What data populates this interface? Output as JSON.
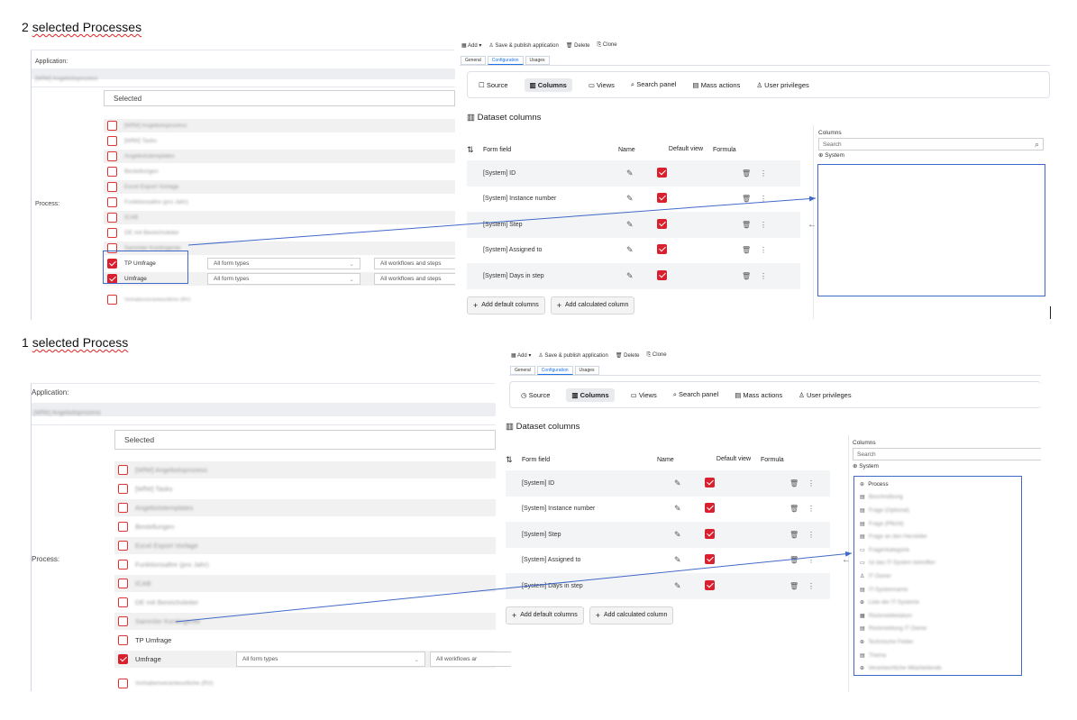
{
  "top": {
    "caption": {
      "count": "2",
      "word": "selected Processes"
    },
    "application_label": "Application:",
    "application_value": "[WfW] Angebotsprozess",
    "process_label": "Process:",
    "selected_label": "Selected",
    "processes": [
      {
        "label": "[WfW] Angebotsprozess",
        "checked": false,
        "blurred": true
      },
      {
        "label": "[WfW] Tasks",
        "checked": false,
        "blurred": true
      },
      {
        "label": "Angebotstemplates",
        "checked": false,
        "blurred": true
      },
      {
        "label": "Bestellungen",
        "checked": false,
        "blurred": true
      },
      {
        "label": "Excel Export Vorlage",
        "checked": false,
        "blurred": true
      },
      {
        "label": "Funktionsaltre (pro Jahr)",
        "checked": false,
        "blurred": true
      },
      {
        "label": "ICAB",
        "checked": false,
        "blurred": true
      },
      {
        "label": "DE mit Bereichsleiter",
        "checked": false,
        "blurred": true
      },
      {
        "label": "Sammler Kontingente",
        "checked": false,
        "blurred": true
      },
      {
        "label": "TP Umfrage",
        "checked": true,
        "blurred": false,
        "form_type": "All form types",
        "workflow": "All workflows and steps"
      },
      {
        "label": "Umfrage",
        "checked": true,
        "blurred": false,
        "form_type": "All form types",
        "workflow": "All workflows and steps"
      },
      {
        "label": "Vorhabenverantwortliche (RV)",
        "checked": false,
        "blurred": true
      }
    ]
  },
  "bottom": {
    "caption": {
      "count": "1",
      "word": "selected Process"
    },
    "application_label": "Application:",
    "application_value": "[WfW] Angebotsprozess",
    "process_label": "Process:",
    "selected_label": "Selected",
    "processes": [
      {
        "label": "[WfW] Angebotsprozess",
        "checked": false,
        "blurred": true
      },
      {
        "label": "[WfW] Tasks",
        "checked": false,
        "blurred": true
      },
      {
        "label": "Angebotstemplates",
        "checked": false,
        "blurred": true
      },
      {
        "label": "Bestellungen",
        "checked": false,
        "blurred": true
      },
      {
        "label": "Excel Export Vorlage",
        "checked": false,
        "blurred": true
      },
      {
        "label": "Funktionsaltre (pro Jahr)",
        "checked": false,
        "blurred": true
      },
      {
        "label": "ICAB",
        "checked": false,
        "blurred": true
      },
      {
        "label": "DE mit Bereichsleiter",
        "checked": false,
        "blurred": true
      },
      {
        "label": "Sammler Kontingente",
        "checked": false,
        "blurred": true
      },
      {
        "label": "TP Umfrage",
        "checked": false,
        "blurred": false
      },
      {
        "label": "Umfrage",
        "checked": true,
        "blurred": false,
        "form_type": "All form types",
        "workflow": "All workflows ar"
      },
      {
        "label": "Vorhabenverantwortliche (RV)",
        "checked": false,
        "blurred": true
      }
    ],
    "tree_items": [
      {
        "icon": "⊕",
        "label": "Process",
        "blurred": false
      },
      {
        "icon": "▤",
        "label": "Beschreibung",
        "blurred": true
      },
      {
        "icon": "▤",
        "label": "Frage (Optional)",
        "blurred": true
      },
      {
        "icon": "▤",
        "label": "Frage (Pflicht)",
        "blurred": true
      },
      {
        "icon": "▤",
        "label": "Frage an den Hersteller",
        "blurred": true
      },
      {
        "icon": "▭",
        "label": "Fragenkategorie",
        "blurred": true
      },
      {
        "icon": "▭",
        "label": "Ist das IT-System betroffen",
        "blurred": true
      },
      {
        "icon": "♙",
        "label": "IT Owner",
        "blurred": true
      },
      {
        "icon": "▤",
        "label": "IT-Systemname",
        "blurred": true
      },
      {
        "icon": "⊕",
        "label": "Liste der IT-Systeme",
        "blurred": true
      },
      {
        "icon": "▦",
        "label": "Rückmeldedatum",
        "blurred": true
      },
      {
        "icon": "▤",
        "label": "Rückmeldung IT Owner",
        "blurred": true
      },
      {
        "icon": "⊕",
        "label": "Technische Felder",
        "blurred": true
      },
      {
        "icon": "▤",
        "label": "Thema",
        "blurred": true
      },
      {
        "icon": "⊕",
        "label": "Verantwortliche Mitarbeitende",
        "blurred": true
      }
    ]
  },
  "toolbar": {
    "add": "Add ▾",
    "save": "Save & publish application",
    "delete": "Delete",
    "clone": "Clone"
  },
  "tabs": {
    "general": "General",
    "configuration": "Configuration",
    "usages": "Usages"
  },
  "config_nav": {
    "source": "Source",
    "columns": "Columns",
    "views": "Views",
    "search_panel": "Search panel",
    "mass_actions": "Mass actions",
    "user_privileges": "User privileges"
  },
  "dataset": {
    "title": "Dataset columns",
    "headers": {
      "form_field": "Form field",
      "name": "Name",
      "default_view": "Default view",
      "formula": "Formula"
    },
    "rows": [
      {
        "field": "[System] ID",
        "default": true
      },
      {
        "field": "[System] Instance number",
        "default": true
      },
      {
        "field": "[System] Step",
        "default": true
      },
      {
        "field": "[System] Assigned to",
        "default": true
      },
      {
        "field": "[System] Days in step",
        "default": true
      }
    ],
    "add_default": "Add default columns",
    "add_calculated": "Add calculated column"
  },
  "columns_panel": {
    "title": "Columns",
    "search_placeholder": "Search",
    "system": "System"
  },
  "colors": {
    "accent_red": "#d8202f",
    "annotation_blue": "#4169c8",
    "tab_blue": "#1a73e8"
  }
}
